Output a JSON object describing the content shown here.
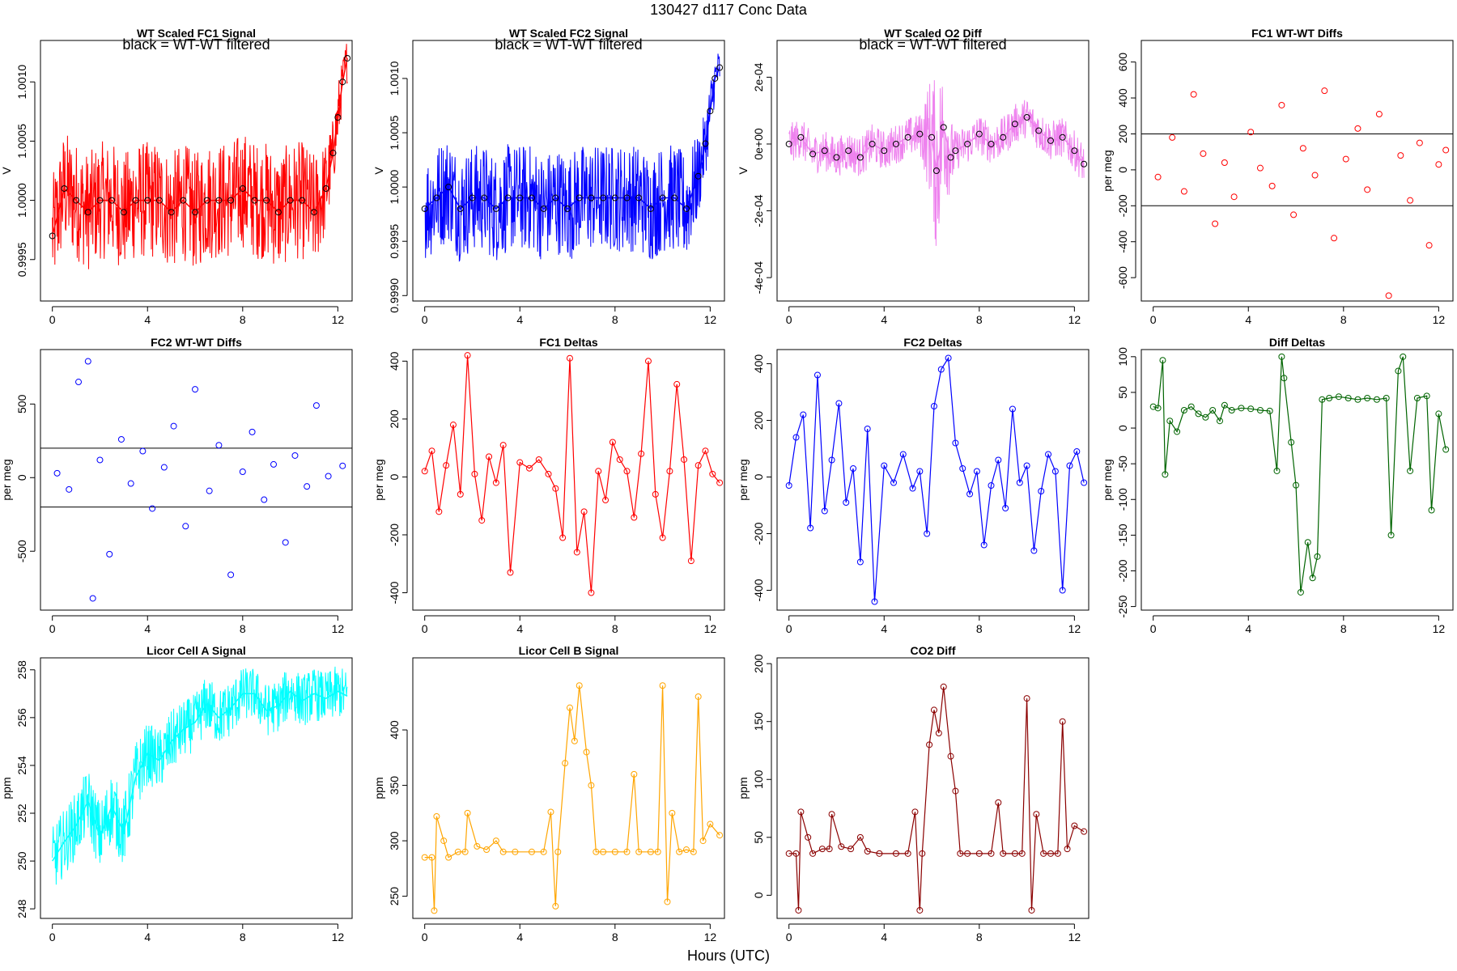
{
  "figure": {
    "title": "130427   d117   Conc Data",
    "xlabel": "Hours (UTC)"
  },
  "colors": {
    "fc1": "#ff0000",
    "fc2": "#0000ff",
    "o2diff": "#ee82ee",
    "diffdeltas": "#006400",
    "licorA": "#00ffff",
    "licorB": "#ffa500",
    "co2": "#8b0000",
    "overlay": "#000000"
  },
  "chart_data": [
    {
      "id": "fc1_signal",
      "type": "line",
      "title": "WT Scaled FC1 Signal",
      "annotation": "black = WT-WT filtered",
      "ylabel": "V",
      "xlim": [
        -0.5,
        12.6
      ],
      "ylim": [
        0.99915,
        1.00135
      ],
      "xticks": [
        0,
        4,
        8,
        12
      ],
      "yticks": [
        0.9995,
        1.0,
        1.0005,
        1.001
      ],
      "ytick_labels": [
        "0.9995",
        "1.0000",
        "1.0005",
        "1.0010"
      ],
      "color_key": "fc1",
      "overlay_points": true,
      "x": [
        0,
        0.5,
        1,
        1.5,
        2,
        2.5,
        3,
        3.5,
        4,
        4.5,
        5,
        5.5,
        6,
        6.5,
        7,
        7.5,
        8,
        8.5,
        9,
        9.5,
        10,
        10.5,
        11,
        11.5,
        11.8,
        12,
        12.2,
        12.4
      ],
      "values": [
        0.9997,
        1.0001,
        1.0,
        0.9999,
        1.0,
        1.0,
        0.9999,
        1.0,
        1.0,
        1.0,
        0.9999,
        1.0,
        0.9999,
        1.0,
        1.0,
        1.0,
        1.0001,
        1.0,
        1.0,
        0.9999,
        1.0,
        1.0,
        0.9999,
        1.0001,
        1.0004,
        1.0007,
        1.001,
        1.0012
      ],
      "spread": [
        0.0005,
        0.0005,
        0.0005,
        0.0005,
        0.0005,
        0.0005,
        0.0005,
        0.0005,
        0.0005,
        0.0005,
        0.0005,
        0.0005,
        0.0005,
        0.0005,
        0.0005,
        0.0005,
        0.0005,
        0.0005,
        0.0005,
        0.0005,
        0.0005,
        0.0005,
        0.0005,
        0.0004,
        0.0003,
        0.0003,
        0.0002,
        0.0002
      ]
    },
    {
      "id": "fc2_signal",
      "type": "line",
      "title": "WT Scaled FC2 Signal",
      "annotation": "black = WT-WT filtered",
      "ylabel": "V",
      "xlim": [
        -0.5,
        12.6
      ],
      "ylim": [
        0.99895,
        1.00135
      ],
      "xticks": [
        0,
        4,
        8,
        12
      ],
      "yticks": [
        0.999,
        0.9995,
        1.0,
        1.0005,
        1.001
      ],
      "ytick_labels": [
        "0.9990",
        "0.9995",
        "1.0000",
        "1.0005",
        "1.0010"
      ],
      "color_key": "fc2",
      "overlay_points": true,
      "x": [
        0,
        0.5,
        1,
        1.5,
        2,
        2.5,
        3,
        3.5,
        4,
        4.5,
        5,
        5.5,
        6,
        6.5,
        7,
        7.5,
        8,
        8.5,
        9,
        9.5,
        10,
        10.5,
        11,
        11.5,
        11.8,
        12,
        12.2,
        12.4
      ],
      "values": [
        0.9998,
        0.9999,
        1.0,
        0.9998,
        0.9999,
        0.9999,
        0.9998,
        0.9999,
        0.9999,
        0.9999,
        0.9998,
        0.9999,
        0.9998,
        0.9999,
        0.9999,
        0.9999,
        0.9999,
        0.9999,
        0.9999,
        0.9998,
        0.9999,
        0.9999,
        0.9998,
        1.0001,
        1.0004,
        1.0007,
        1.001,
        1.0011
      ],
      "spread": [
        0.0005,
        0.0005,
        0.0005,
        0.0005,
        0.0005,
        0.0005,
        0.0005,
        0.0005,
        0.0005,
        0.0005,
        0.0005,
        0.0005,
        0.0005,
        0.0005,
        0.0005,
        0.0005,
        0.0005,
        0.0005,
        0.0005,
        0.0005,
        0.0005,
        0.0005,
        0.0005,
        0.0004,
        0.0003,
        0.0003,
        0.0002,
        0.0002
      ]
    },
    {
      "id": "o2_diff",
      "type": "line",
      "title": "WT Scaled O2 Diff",
      "annotation": "black = WT-WT filtered",
      "ylabel": "V",
      "xlim": [
        -0.5,
        12.6
      ],
      "ylim": [
        -0.00047,
        0.00031
      ],
      "xticks": [
        0,
        4,
        8,
        12
      ],
      "yticks": [
        -0.0004,
        -0.0002,
        0.0,
        0.0002
      ],
      "ytick_labels": [
        "-4e-04",
        "-2e-04",
        "0e+00",
        "2e-04"
      ],
      "color_key": "o2diff",
      "overlay_points": true,
      "x": [
        0,
        0.5,
        1,
        1.5,
        2,
        2.5,
        3,
        3.5,
        4,
        4.5,
        5,
        5.5,
        6,
        6.2,
        6.5,
        6.8,
        7,
        7.5,
        8,
        8.5,
        9,
        9.5,
        10,
        10.5,
        11,
        11.5,
        12,
        12.4
      ],
      "values": [
        0.0,
        2e-05,
        -3e-05,
        -2e-05,
        -4e-05,
        -2e-05,
        -4e-05,
        0.0,
        -2e-05,
        0.0,
        2e-05,
        3e-05,
        2e-05,
        -8e-05,
        5e-05,
        -4e-05,
        -2e-05,
        0.0,
        3e-05,
        0.0,
        2e-05,
        6e-05,
        8e-05,
        4e-05,
        1e-05,
        2e-05,
        -2e-05,
        -6e-05
      ],
      "spread": [
        6e-05,
        6e-05,
        6e-05,
        6e-05,
        6e-05,
        6e-05,
        6e-05,
        6e-05,
        6e-05,
        6e-05,
        6e-05,
        6e-05,
        0.0002,
        0.00026,
        0.0002,
        0.00012,
        6e-05,
        6e-05,
        6e-05,
        6e-05,
        6e-05,
        6e-05,
        6e-05,
        6e-05,
        6e-05,
        6e-05,
        6e-05,
        6e-05
      ]
    },
    {
      "id": "fc1_wtwt_diffs",
      "type": "scatter",
      "title": "FC1 WT-WT Diffs",
      "ylabel": "per meg",
      "xlim": [
        -0.5,
        12.6
      ],
      "ylim": [
        -730,
        720
      ],
      "xticks": [
        0,
        4,
        8,
        12
      ],
      "yticks": [
        -600,
        -400,
        -200,
        0,
        200,
        400,
        600
      ],
      "ytick_labels": [
        "-600",
        "-400",
        "-200",
        "0",
        "200",
        "400",
        "600"
      ],
      "hlines": [
        200,
        -200
      ],
      "color_key": "fc1",
      "x": [
        0.2,
        0.8,
        1.3,
        1.7,
        2.1,
        2.6,
        3.0,
        3.4,
        4.1,
        4.5,
        5.0,
        5.4,
        5.9,
        6.3,
        6.8,
        7.2,
        7.6,
        8.1,
        8.6,
        9.0,
        9.5,
        9.9,
        10.4,
        10.8,
        11.2,
        11.6,
        12.0,
        12.3
      ],
      "values": [
        -40,
        180,
        -120,
        420,
        90,
        -300,
        40,
        -150,
        210,
        10,
        -90,
        360,
        -250,
        120,
        -30,
        440,
        -380,
        60,
        230,
        -110,
        310,
        -700,
        80,
        -170,
        150,
        -420,
        30,
        110
      ]
    },
    {
      "id": "fc2_wtwt_diffs",
      "type": "scatter",
      "title": "FC2 WT-WT Diffs",
      "ylabel": "per meg",
      "xlim": [
        -0.5,
        12.6
      ],
      "ylim": [
        -900,
        870
      ],
      "xticks": [
        0,
        4,
        8,
        12
      ],
      "yticks": [
        -500,
        0,
        500
      ],
      "ytick_labels": [
        "-500",
        "0",
        "500"
      ],
      "hlines": [
        200,
        -200
      ],
      "color_key": "fc2",
      "x": [
        0.2,
        0.7,
        1.1,
        1.5,
        1.7,
        2.0,
        2.4,
        2.9,
        3.3,
        3.8,
        4.2,
        4.7,
        5.1,
        5.6,
        6.0,
        6.6,
        7.0,
        7.5,
        8.0,
        8.4,
        8.9,
        9.3,
        9.8,
        10.2,
        10.7,
        11.1,
        11.6,
        12.2
      ],
      "values": [
        30,
        -80,
        650,
        790,
        -820,
        120,
        -520,
        260,
        -40,
        180,
        -210,
        70,
        350,
        -330,
        600,
        -90,
        220,
        -660,
        40,
        310,
        -150,
        90,
        -440,
        150,
        -60,
        490,
        10,
        80
      ]
    },
    {
      "id": "fc1_deltas",
      "type": "line",
      "title": "FC1 Deltas",
      "ylabel": "per meg",
      "xlim": [
        -0.5,
        12.6
      ],
      "ylim": [
        -460,
        440
      ],
      "xticks": [
        0,
        4,
        8,
        12
      ],
      "yticks": [
        -400,
        -200,
        0,
        200,
        400
      ],
      "ytick_labels": [
        "-400",
        "-200",
        "0",
        "200",
        "400"
      ],
      "color_key": "fc1",
      "markers": true,
      "x": [
        0.0,
        0.3,
        0.6,
        0.9,
        1.2,
        1.5,
        1.8,
        2.1,
        2.4,
        2.7,
        3.0,
        3.3,
        3.6,
        4.0,
        4.4,
        4.8,
        5.2,
        5.5,
        5.8,
        6.1,
        6.4,
        6.7,
        7.0,
        7.3,
        7.6,
        7.9,
        8.2,
        8.5,
        8.8,
        9.1,
        9.4,
        9.7,
        10.0,
        10.3,
        10.6,
        10.9,
        11.2,
        11.5,
        11.8,
        12.1,
        12.4
      ],
      "values": [
        20,
        90,
        -120,
        40,
        180,
        -60,
        420,
        10,
        -150,
        70,
        -20,
        110,
        -330,
        50,
        30,
        60,
        10,
        -40,
        -210,
        410,
        -260,
        -120,
        -400,
        20,
        -80,
        120,
        60,
        20,
        -140,
        80,
        400,
        -60,
        -210,
        20,
        320,
        60,
        -290,
        40,
        90,
        10,
        -20
      ]
    },
    {
      "id": "fc2_deltas",
      "type": "line",
      "title": "FC2 Deltas",
      "ylabel": "per meg",
      "xlim": [
        -0.5,
        12.6
      ],
      "ylim": [
        -470,
        450
      ],
      "xticks": [
        0,
        4,
        8,
        12
      ],
      "yticks": [
        -400,
        -200,
        0,
        200,
        400
      ],
      "ytick_labels": [
        "-400",
        "-200",
        "0",
        "200",
        "400"
      ],
      "color_key": "fc2",
      "markers": true,
      "x": [
        0.0,
        0.3,
        0.6,
        0.9,
        1.2,
        1.5,
        1.8,
        2.1,
        2.4,
        2.7,
        3.0,
        3.3,
        3.6,
        4.0,
        4.4,
        4.8,
        5.2,
        5.5,
        5.8,
        6.1,
        6.4,
        6.7,
        7.0,
        7.3,
        7.6,
        7.9,
        8.2,
        8.5,
        8.8,
        9.1,
        9.4,
        9.7,
        10.0,
        10.3,
        10.6,
        10.9,
        11.2,
        11.5,
        11.8,
        12.1,
        12.4
      ],
      "values": [
        -30,
        140,
        220,
        -180,
        360,
        -120,
        60,
        260,
        -90,
        30,
        -300,
        170,
        -440,
        40,
        -20,
        80,
        -40,
        20,
        -200,
        250,
        380,
        420,
        120,
        30,
        -60,
        20,
        -240,
        -30,
        60,
        -110,
        240,
        -20,
        40,
        -260,
        -50,
        80,
        20,
        -400,
        40,
        90,
        -20
      ]
    },
    {
      "id": "diff_deltas",
      "type": "line",
      "title": "Diff Deltas",
      "ylabel": "per meg",
      "xlim": [
        -0.5,
        12.6
      ],
      "ylim": [
        -255,
        110
      ],
      "xticks": [
        0,
        4,
        8,
        12
      ],
      "yticks": [
        -250,
        -200,
        -150,
        -100,
        -50,
        0,
        50,
        100
      ],
      "ytick_labels": [
        "-250",
        "-200",
        "-150",
        "-100",
        "-50",
        "0",
        "50",
        "100"
      ],
      "color_key": "diffdeltas",
      "markers": true,
      "x": [
        0.0,
        0.2,
        0.4,
        0.5,
        0.7,
        1.0,
        1.3,
        1.6,
        1.9,
        2.2,
        2.5,
        2.8,
        3.0,
        3.3,
        3.7,
        4.1,
        4.5,
        4.9,
        5.2,
        5.4,
        5.5,
        5.8,
        6.0,
        6.2,
        6.5,
        6.7,
        6.9,
        7.1,
        7.4,
        7.8,
        8.2,
        8.6,
        9.0,
        9.4,
        9.8,
        10.0,
        10.3,
        10.5,
        10.8,
        11.1,
        11.5,
        11.7,
        12.0,
        12.3
      ],
      "values": [
        30,
        28,
        95,
        -65,
        10,
        -5,
        25,
        30,
        20,
        15,
        25,
        10,
        32,
        25,
        28,
        27,
        25,
        24,
        -60,
        100,
        70,
        -20,
        -80,
        -230,
        -160,
        -210,
        -180,
        40,
        42,
        44,
        42,
        40,
        42,
        40,
        42,
        -150,
        80,
        100,
        -60,
        42,
        45,
        -115,
        20,
        -30
      ]
    },
    {
      "id": "licor_a",
      "type": "line",
      "title": "Licor Cell A Signal",
      "ylabel": "ppm",
      "xlim": [
        -0.5,
        12.6
      ],
      "ylim": [
        247.6,
        258.5
      ],
      "xticks": [
        0,
        4,
        8,
        12
      ],
      "yticks": [
        248,
        250,
        252,
        254,
        256,
        258
      ],
      "ytick_labels": [
        "248",
        "250",
        "252",
        "254",
        "256",
        "258"
      ],
      "color_key": "licorA",
      "x": [
        0,
        0.5,
        1,
        1.5,
        2,
        2.5,
        3,
        3.5,
        4,
        4.5,
        5,
        5.5,
        6,
        6.5,
        7,
        7.5,
        8,
        8.5,
        9,
        9.5,
        10,
        10.5,
        11,
        11.5,
        12,
        12.4
      ],
      "values": [
        250,
        250.8,
        251.5,
        252.5,
        251.0,
        252.3,
        251.2,
        253.5,
        254.5,
        254.2,
        255.0,
        255.5,
        255.8,
        256.6,
        256.0,
        256.4,
        257.0,
        257.0,
        256.3,
        256.5,
        257.1,
        256.7,
        257.0,
        256.8,
        257.1,
        256.9
      ],
      "spread": [
        1.4,
        1.4,
        1.4,
        1.4,
        1.5,
        1.5,
        1.5,
        1.5,
        1.3,
        1.3,
        1.3,
        1.2,
        1.2,
        1.2,
        1.2,
        1.2,
        1.1,
        1.1,
        1.1,
        1.1,
        1.1,
        1.1,
        1.1,
        1.1,
        1.1,
        1.1
      ]
    },
    {
      "id": "licor_b",
      "type": "line",
      "title": "Licor Cell B Signal",
      "ylabel": "ppm",
      "xlim": [
        -0.5,
        12.6
      ],
      "ylim": [
        230,
        465
      ],
      "xticks": [
        0,
        4,
        8,
        12
      ],
      "yticks": [
        250,
        300,
        350,
        400
      ],
      "ytick_labels": [
        "250",
        "300",
        "350",
        "400"
      ],
      "color_key": "licorB",
      "markers": true,
      "x": [
        0.0,
        0.3,
        0.4,
        0.5,
        0.8,
        1.0,
        1.4,
        1.7,
        1.8,
        2.2,
        2.6,
        3.0,
        3.3,
        3.8,
        4.5,
        5.0,
        5.3,
        5.5,
        5.6,
        5.9,
        6.1,
        6.3,
        6.5,
        6.8,
        7.0,
        7.2,
        7.5,
        8.0,
        8.5,
        8.8,
        9.0,
        9.5,
        9.8,
        10.0,
        10.2,
        10.4,
        10.7,
        11.0,
        11.3,
        11.5,
        11.7,
        12.0,
        12.4
      ],
      "values": [
        285,
        285,
        237,
        322,
        300,
        285,
        290,
        290,
        325,
        295,
        292,
        300,
        290,
        290,
        290,
        290,
        326,
        241,
        290,
        370,
        420,
        390,
        440,
        380,
        350,
        290,
        290,
        290,
        290,
        360,
        290,
        290,
        290,
        440,
        245,
        325,
        290,
        292,
        290,
        430,
        300,
        315,
        305
      ]
    },
    {
      "id": "co2_diff",
      "type": "line",
      "title": "CO2 Diff",
      "ylabel": "ppm",
      "xlim": [
        -0.5,
        12.6
      ],
      "ylim": [
        -20,
        205
      ],
      "xticks": [
        0,
        4,
        8,
        12
      ],
      "yticks": [
        0,
        50,
        100,
        150,
        200
      ],
      "ytick_labels": [
        "0",
        "50",
        "100",
        "150",
        "200"
      ],
      "color_key": "co2",
      "markers": true,
      "x": [
        0.0,
        0.3,
        0.4,
        0.5,
        0.8,
        1.0,
        1.4,
        1.7,
        1.8,
        2.2,
        2.6,
        3.0,
        3.3,
        3.8,
        4.5,
        5.0,
        5.3,
        5.5,
        5.6,
        5.9,
        6.1,
        6.3,
        6.5,
        6.8,
        7.0,
        7.2,
        7.5,
        8.0,
        8.5,
        8.8,
        9.0,
        9.5,
        9.8,
        10.0,
        10.2,
        10.4,
        10.7,
        11.0,
        11.3,
        11.5,
        11.7,
        12.0,
        12.4
      ],
      "values": [
        36,
        36,
        -13,
        72,
        50,
        36,
        40,
        40,
        70,
        42,
        40,
        50,
        38,
        36,
        36,
        36,
        72,
        -13,
        36,
        130,
        160,
        140,
        180,
        120,
        90,
        36,
        36,
        36,
        36,
        80,
        36,
        36,
        36,
        170,
        -13,
        70,
        36,
        36,
        36,
        150,
        40,
        60,
        55
      ]
    }
  ]
}
